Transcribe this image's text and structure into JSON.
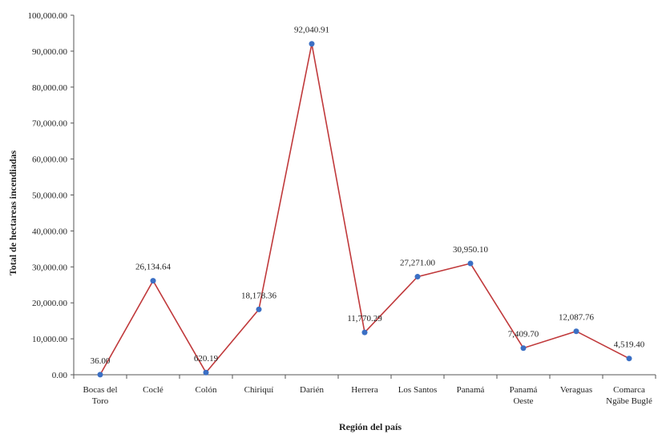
{
  "chart_data": {
    "type": "line",
    "xlabel": "Región del país",
    "ylabel": "Total de hectareas incendiadas",
    "ylim": [
      0,
      100000
    ],
    "yticks": [
      "0.00",
      "10,000.00",
      "20,000.00",
      "30,000.00",
      "40,000.00",
      "50,000.00",
      "60,000.00",
      "70,000.00",
      "80,000.00",
      "90,000.00",
      "100,000.00"
    ],
    "grid": false,
    "categories": [
      [
        "Bocas del",
        "Toro"
      ],
      [
        "Coclé"
      ],
      [
        "Colón"
      ],
      [
        "Chiriquí"
      ],
      [
        "Darién"
      ],
      [
        "Herrera"
      ],
      [
        "Los Santos"
      ],
      [
        "Panamá"
      ],
      [
        "Panamá",
        "Oeste"
      ],
      [
        "Veraguas"
      ],
      [
        "Comarca",
        "Ngäbe Buglé"
      ]
    ],
    "values": [
      36.0,
      26134.64,
      620.19,
      18178.36,
      92040.91,
      11770.29,
      27271.0,
      30950.1,
      7409.7,
      12087.76,
      4519.4
    ],
    "value_labels": [
      "36.00",
      "26,134.64",
      "620.19",
      "18,178.36",
      "92,040.91",
      "11,770.29",
      "27,271.00",
      "30,950.10",
      "7,409.70",
      "12,087.76",
      "4,519.40"
    ],
    "colors": {
      "line": "#c0393b",
      "marker": "#3b6fc4"
    }
  }
}
